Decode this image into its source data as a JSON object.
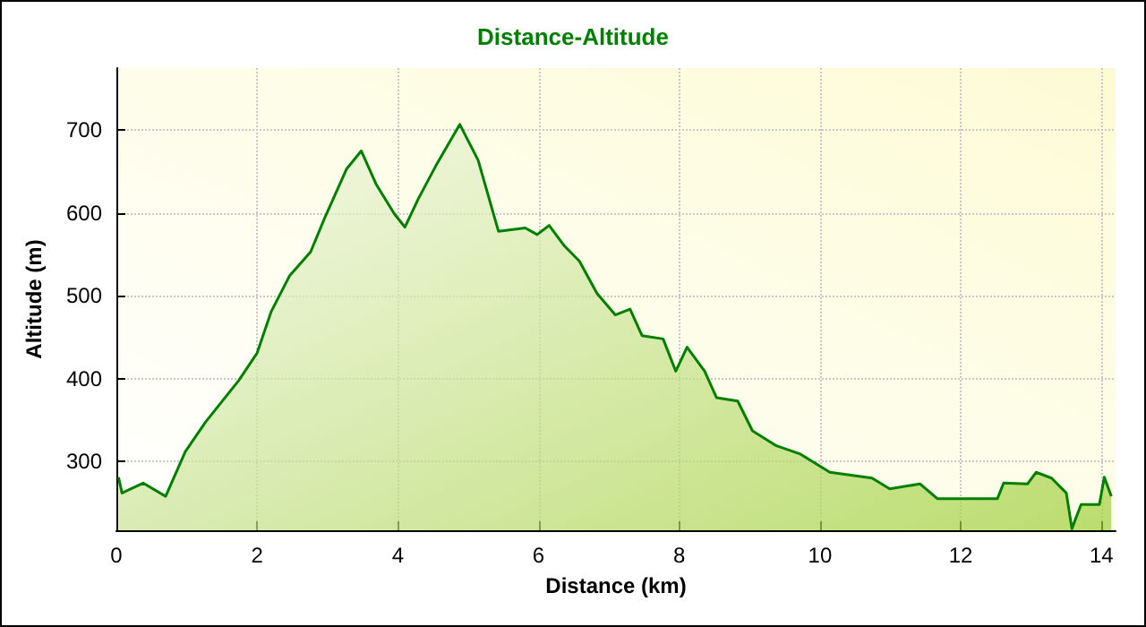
{
  "chart_data": {
    "type": "area",
    "title": "Distance-Altitude",
    "xlabel": "Distance (km)",
    "ylabel": "Altitude (m)",
    "x": [
      0.03,
      0.08,
      0.38,
      0.7,
      0.98,
      1.27,
      1.74,
      2.0,
      2.2,
      2.46,
      2.76,
      2.97,
      3.27,
      3.48,
      3.69,
      3.95,
      4.1,
      4.29,
      4.54,
      4.88,
      5.14,
      5.43,
      5.81,
      5.98,
      6.15,
      6.37,
      6.58,
      6.83,
      7.09,
      7.3,
      7.47,
      7.77,
      7.95,
      8.11,
      8.36,
      8.53,
      8.83,
      9.04,
      9.38,
      9.72,
      10.14,
      10.74,
      10.99,
      11.42,
      11.67,
      12.1,
      12.52,
      12.61,
      12.95,
      13.07,
      13.29,
      13.5,
      13.58,
      13.71,
      13.97,
      14.04,
      14.14
    ],
    "series": [
      {
        "color": "#008000",
        "values": [
          281,
          262,
          274,
          258,
          312,
          348,
          398,
          431,
          481,
          524,
          553,
          596,
          653,
          675,
          635,
          599,
          583,
          617,
          657,
          707,
          664,
          578,
          582,
          574,
          585,
          560,
          542,
          503,
          477,
          484,
          452,
          448,
          409,
          438,
          409,
          377,
          373,
          337,
          319,
          309,
          287,
          280,
          267,
          273,
          255,
          255,
          255,
          274,
          273,
          287,
          280,
          262,
          219,
          248,
          248,
          281,
          258
        ]
      }
    ],
    "xlim": [
      0,
      14.2
    ],
    "xticks": [
      0,
      2,
      4,
      6,
      8,
      10,
      12,
      14
    ],
    "ylim": [
      217,
      775
    ],
    "yticks": [
      300,
      400,
      500,
      600,
      700
    ],
    "grid": true
  }
}
